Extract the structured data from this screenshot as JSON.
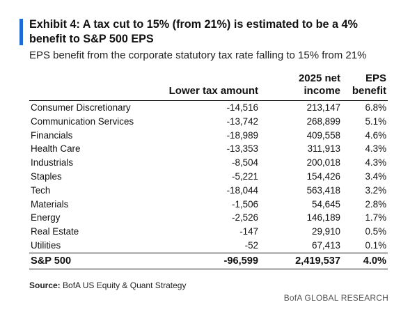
{
  "exhibit": {
    "title": "Exhibit 4: A tax cut to 15% (from 21%) is estimated to be a 4% benefit to S&P 500 EPS",
    "subtitle": "EPS benefit from the corporate statutory tax rate falling to 15% from 21%",
    "accent_color": "#1f6bd6"
  },
  "table": {
    "headers": [
      "",
      "Lower tax amount",
      "2025 net income",
      "EPS benefit"
    ],
    "header_lines": {
      "net_income": [
        "2025 net",
        "income"
      ],
      "eps_benefit": [
        "EPS",
        "benefit"
      ]
    },
    "rows": [
      [
        "Consumer Discretionary",
        "-14,516",
        "213,147",
        "6.8%"
      ],
      [
        "Communication Services",
        "-13,742",
        "268,899",
        "5.1%"
      ],
      [
        "Financials",
        "-18,989",
        "409,558",
        "4.6%"
      ],
      [
        "Health Care",
        "-13,353",
        "311,913",
        "4.3%"
      ],
      [
        "Industrials",
        "-8,504",
        "200,018",
        "4.3%"
      ],
      [
        "Staples",
        "-5,221",
        "154,426",
        "3.4%"
      ],
      [
        "Tech",
        "-18,044",
        "563,418",
        "3.2%"
      ],
      [
        "Materials",
        "-1,506",
        "54,645",
        "2.8%"
      ],
      [
        "Energy",
        "-2,526",
        "146,189",
        "1.7%"
      ],
      [
        "Real Estate",
        "-147",
        "29,910",
        "0.5%"
      ],
      [
        "Utilities",
        "-52",
        "67,413",
        "0.1%"
      ]
    ],
    "total": [
      "S&P 500",
      "-96,599",
      "2,419,537",
      "4.0%"
    ]
  },
  "footer": {
    "source_label": "Source:",
    "source_text": " BofA US Equity & Quant Strategy",
    "brand": "BofA GLOBAL RESEARCH"
  }
}
